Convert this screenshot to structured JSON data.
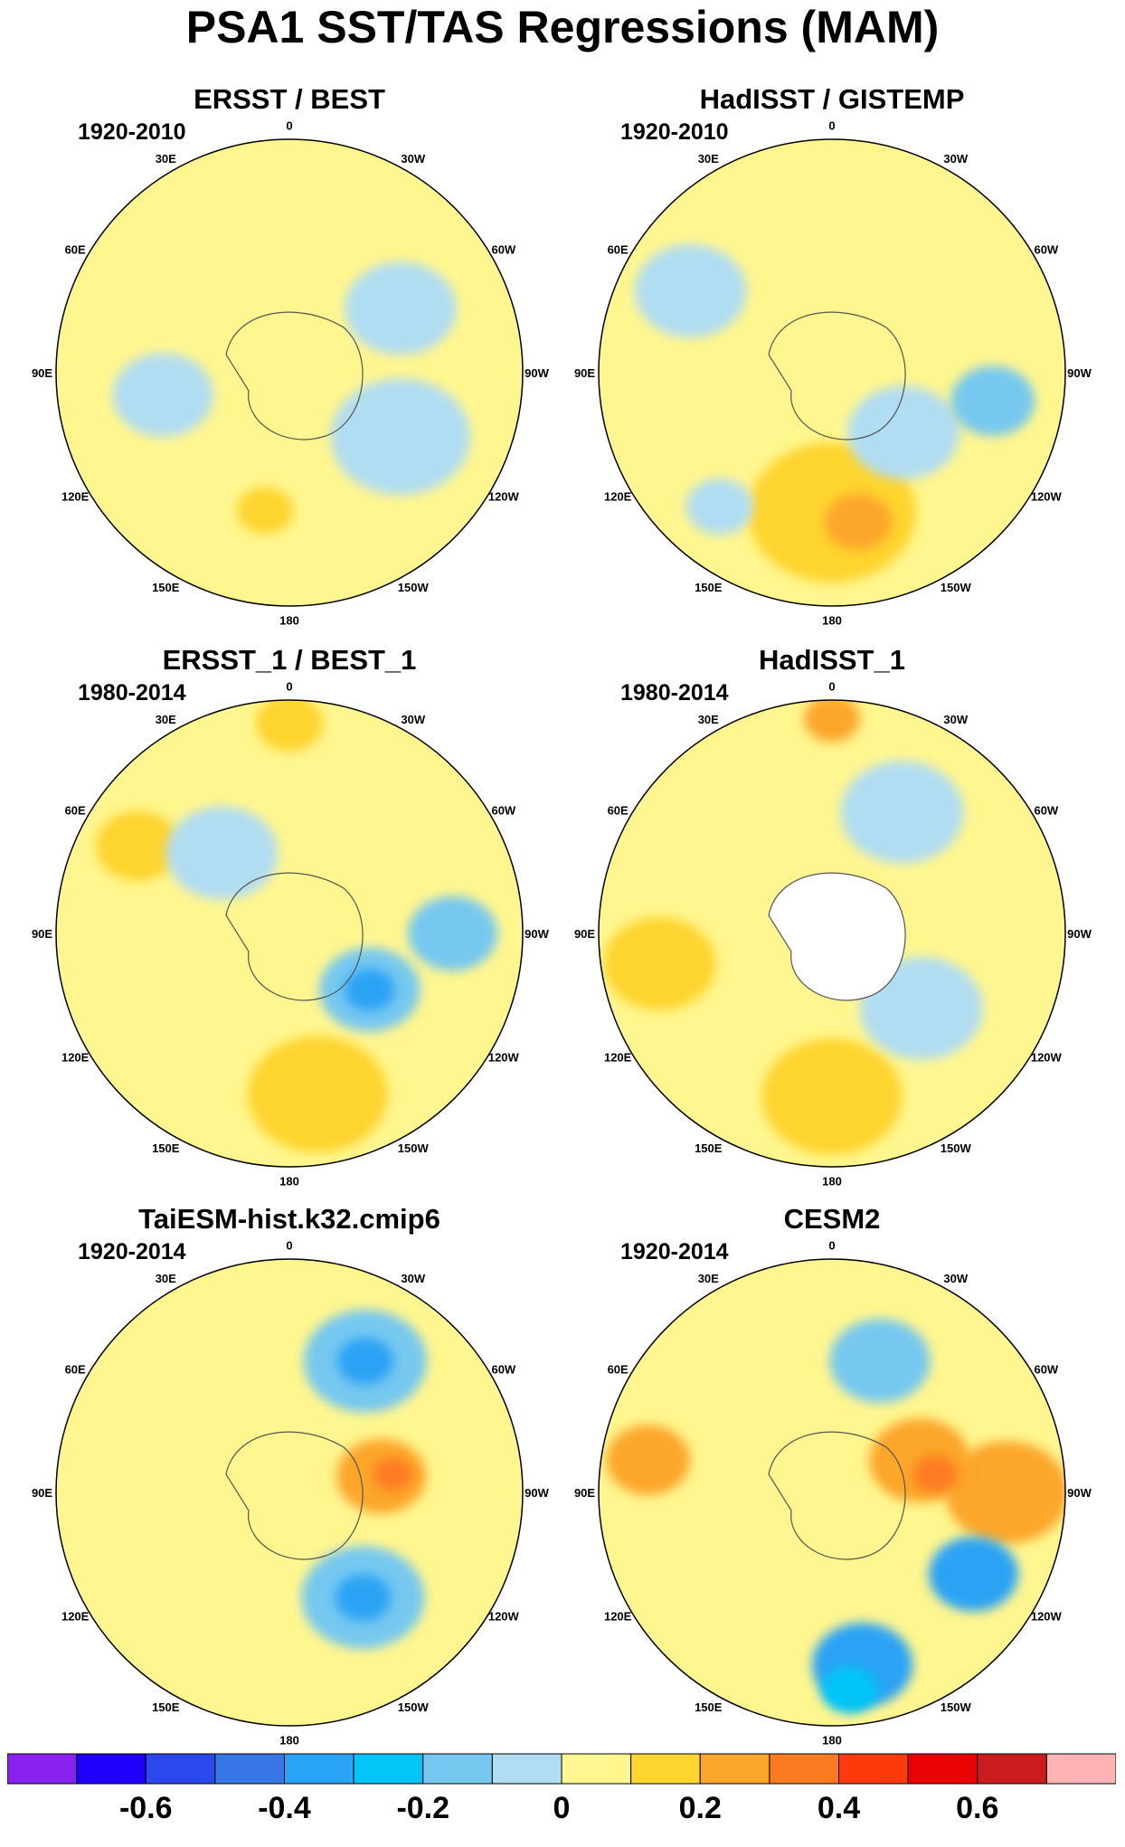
{
  "title": "PSA1 SST/TAS Regressions (MAM)",
  "longitude_labels": [
    "0",
    "30E",
    "60E",
    "90E",
    "120E",
    "150E",
    "180",
    "150W",
    "120W",
    "90W",
    "60W",
    "30W"
  ],
  "panels": [
    {
      "title": "ERSST / BEST",
      "period": "1920-2010",
      "blobs": [
        {
          "lon": 150,
          "r": 0.45,
          "rad": 0.28,
          "color": "#fff68f"
        },
        {
          "lon": 100,
          "r": 0.55,
          "rad": 0.18,
          "color": "#b1ddf2"
        },
        {
          "lon": 240,
          "r": 0.55,
          "rad": 0.25,
          "color": "#b1ddf2"
        },
        {
          "lon": 300,
          "r": 0.55,
          "rad": 0.2,
          "color": "#b1ddf2"
        },
        {
          "lon": 170,
          "r": 0.6,
          "rad": 0.1,
          "color": "#fed42f"
        }
      ]
    },
    {
      "title": "HadISST / GISTEMP",
      "period": "1920-2010",
      "blobs": [
        {
          "lon": 180,
          "r": 0.6,
          "rad": 0.3,
          "color": "#fed42f"
        },
        {
          "lon": 190,
          "r": 0.65,
          "rad": 0.12,
          "color": "#fca62a"
        },
        {
          "lon": 230,
          "r": 0.4,
          "rad": 0.2,
          "color": "#b1ddf2"
        },
        {
          "lon": 260,
          "r": 0.7,
          "rad": 0.15,
          "color": "#76c8f0"
        },
        {
          "lon": 60,
          "r": 0.7,
          "rad": 0.2,
          "color": "#b1ddf2"
        },
        {
          "lon": 140,
          "r": 0.75,
          "rad": 0.12,
          "color": "#b1ddf2"
        }
      ]
    },
    {
      "title": "ERSST_1 / BEST_1",
      "period": "1980-2014",
      "blobs": [
        {
          "lon": 190,
          "r": 0.7,
          "rad": 0.25,
          "color": "#fed42f"
        },
        {
          "lon": 235,
          "r": 0.42,
          "rad": 0.18,
          "color": "#76c8f0"
        },
        {
          "lon": 235,
          "r": 0.42,
          "rad": 0.09,
          "color": "#29a3f5"
        },
        {
          "lon": 270,
          "r": 0.7,
          "rad": 0.16,
          "color": "#76c8f0"
        },
        {
          "lon": 60,
          "r": 0.75,
          "rad": 0.15,
          "color": "#fed42f"
        },
        {
          "lon": 0,
          "r": 0.9,
          "rad": 0.12,
          "color": "#fed42f"
        },
        {
          "lon": 40,
          "r": 0.45,
          "rad": 0.2,
          "color": "#b1ddf2"
        }
      ]
    },
    {
      "title": "HadISST_1",
      "period": "1980-2014",
      "blobs": [
        {
          "lon": 180,
          "r": 0.7,
          "rad": 0.25,
          "color": "#fed42f"
        },
        {
          "lon": 100,
          "r": 0.75,
          "rad": 0.2,
          "color": "#fed42f"
        },
        {
          "lon": 330,
          "r": 0.6,
          "rad": 0.22,
          "color": "#b1ddf2"
        },
        {
          "lon": 230,
          "r": 0.5,
          "rad": 0.22,
          "color": "#b1ddf2"
        },
        {
          "lon": 0,
          "r": 0.92,
          "rad": 0.1,
          "color": "#fca62a"
        }
      ]
    },
    {
      "title": "TaiESM-hist.k32.cmip6",
      "period": "1920-2014",
      "blobs": [
        {
          "lon": 330,
          "r": 0.65,
          "rad": 0.22,
          "color": "#76c8f0"
        },
        {
          "lon": 330,
          "r": 0.65,
          "rad": 0.1,
          "color": "#29a3f5"
        },
        {
          "lon": 215,
          "r": 0.55,
          "rad": 0.22,
          "color": "#76c8f0"
        },
        {
          "lon": 215,
          "r": 0.55,
          "rad": 0.1,
          "color": "#29a3f5"
        },
        {
          "lon": 280,
          "r": 0.4,
          "rad": 0.16,
          "color": "#fca62a"
        },
        {
          "lon": 280,
          "r": 0.45,
          "rad": 0.07,
          "color": "#fd7b20"
        },
        {
          "lon": 100,
          "r": 0.6,
          "rad": 0.25,
          "color": "#fff68f"
        }
      ]
    },
    {
      "title": "CESM2",
      "period": "1920-2014",
      "blobs": [
        {
          "lon": 270,
          "r": 0.75,
          "rad": 0.22,
          "color": "#fca62a"
        },
        {
          "lon": 240,
          "r": 0.7,
          "rad": 0.16,
          "color": "#29a3f5"
        },
        {
          "lon": 190,
          "r": 0.75,
          "rad": 0.18,
          "color": "#29a3f5"
        },
        {
          "lon": 185,
          "r": 0.85,
          "rad": 0.1,
          "color": "#04c5f7"
        },
        {
          "lon": 290,
          "r": 0.4,
          "rad": 0.18,
          "color": "#fca62a"
        },
        {
          "lon": 280,
          "r": 0.45,
          "rad": 0.08,
          "color": "#fd7b20"
        },
        {
          "lon": 80,
          "r": 0.8,
          "rad": 0.15,
          "color": "#fca62a"
        },
        {
          "lon": 340,
          "r": 0.6,
          "rad": 0.18,
          "color": "#76c8f0"
        }
      ]
    }
  ],
  "colorbar": {
    "colors": [
      "#8a22ef",
      "#1f00fd",
      "#2a48ee",
      "#3777e5",
      "#29a3f5",
      "#04c5f7",
      "#76c8f0",
      "#b1ddf2",
      "#fff68f",
      "#fed42f",
      "#fca62a",
      "#fd7b20",
      "#fd3a0c",
      "#ea0202",
      "#cc1b1d",
      "#feb4b4"
    ],
    "labels": [
      {
        "text": "-0.6",
        "boundary": 2
      },
      {
        "text": "-0.4",
        "boundary": 4
      },
      {
        "text": "-0.2",
        "boundary": 6
      },
      {
        "text": "0",
        "boundary": 8
      },
      {
        "text": "0.2",
        "boundary": 10
      },
      {
        "text": "0.4",
        "boundary": 12
      },
      {
        "text": "0.6",
        "boundary": 14
      }
    ]
  }
}
